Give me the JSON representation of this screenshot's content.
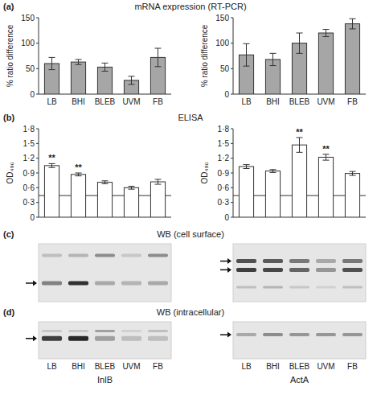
{
  "figure": {
    "panels": [
      {
        "letter": "(a)",
        "title": "mRNA expression (RT-PCR)"
      },
      {
        "letter": "(b)",
        "title": "ELISA"
      },
      {
        "letter": "(c)",
        "title": "WB (cell surface)"
      },
      {
        "letter": "(d)",
        "title": "WB (intracellular)"
      }
    ],
    "lanes": [
      "LB",
      "BHI",
      "BLEB",
      "UVM",
      "FB"
    ],
    "proteins": [
      "InlB",
      "ActA"
    ]
  },
  "chart_data": [
    {
      "type": "bar",
      "y_label": "% ratio difference",
      "categories": [
        "LB",
        "BHI",
        "BLEB",
        "UVM",
        "FB"
      ],
      "values": [
        60,
        63,
        53,
        27,
        72
      ],
      "errors": [
        12,
        5,
        8,
        8,
        18
      ],
      "color": "#a6a6a6",
      "ylim": [
        0,
        150
      ],
      "yticks": [
        0,
        50,
        100,
        150
      ]
    },
    {
      "type": "bar",
      "y_label": "% ratio difference",
      "categories": [
        "LB",
        "BHI",
        "BLEB",
        "UVM",
        "FB"
      ],
      "values": [
        77,
        68,
        100,
        120,
        138
      ],
      "errors": [
        22,
        12,
        20,
        7,
        10
      ],
      "color": "#a6a6a6",
      "ylim": [
        0,
        150
      ],
      "yticks": [
        0,
        50,
        100,
        150
      ]
    },
    {
      "type": "bar",
      "y_label": "OD₄₉₀",
      "categories": [
        "LB",
        "BHI",
        "BLEB",
        "UVM",
        "FB"
      ],
      "values": [
        1.05,
        0.87,
        0.71,
        0.6,
        0.72
      ],
      "errors": [
        0.04,
        0.03,
        0.03,
        0.03,
        0.05
      ],
      "color": "#ffffff",
      "ylim": [
        0,
        1.8
      ],
      "yticks": [
        0,
        {
          "value": 0.3,
          "label": "0·3"
        },
        {
          "value": 0.6,
          "label": "0·6"
        },
        {
          "value": 0.9,
          "label": "0·9"
        },
        {
          "value": 1.2,
          "label": "1·2"
        },
        {
          "value": 1.5,
          "label": "1·5"
        },
        {
          "value": 1.8,
          "label": "1·8"
        }
      ],
      "tick_labels": "y",
      "threshold": 0.44,
      "annotations": [
        {
          "category": "LB",
          "text": "**"
        },
        {
          "category": "BHI",
          "text": "**"
        }
      ]
    },
    {
      "type": "bar",
      "y_label": "OD₄₉₀",
      "categories": [
        "LB",
        "BHI",
        "BLEB",
        "UVM",
        "FB"
      ],
      "values": [
        1.03,
        0.94,
        1.47,
        1.22,
        0.89
      ],
      "errors": [
        0.04,
        0.03,
        0.15,
        0.06,
        0.04
      ],
      "color": "#ffffff",
      "ylim": [
        0,
        1.8
      ],
      "yticks": [
        0,
        {
          "value": 0.3,
          "label": "0·3"
        },
        {
          "value": 0.6,
          "label": "0·6"
        },
        {
          "value": 0.9,
          "label": "0·9"
        },
        {
          "value": 1.2,
          "label": "1·2"
        },
        {
          "value": 1.5,
          "label": "1·5"
        },
        {
          "value": 1.8,
          "label": "1·8"
        }
      ],
      "tick_labels": "y",
      "threshold": 0.44,
      "annotations": [
        {
          "category": "BLEB",
          "text": "**"
        },
        {
          "category": "UVM",
          "text": "**"
        }
      ]
    }
  ]
}
